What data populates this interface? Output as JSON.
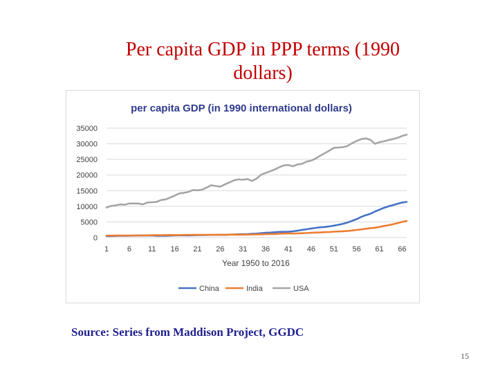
{
  "slide": {
    "title": "Per capita GDP in PPP terms (1990 dollars)",
    "source": "Source: Series from Maddison Project, GGDC",
    "page_number": "15"
  },
  "chart_data": {
    "type": "line",
    "title": "per capita GDP (in 1990 international dollars)",
    "xlabel": "Year 1950 to 2016",
    "ylabel": "",
    "x": [
      1,
      2,
      3,
      4,
      5,
      6,
      7,
      8,
      9,
      10,
      11,
      12,
      13,
      14,
      15,
      16,
      17,
      18,
      19,
      20,
      21,
      22,
      23,
      24,
      25,
      26,
      27,
      28,
      29,
      30,
      31,
      32,
      33,
      34,
      35,
      36,
      37,
      38,
      39,
      40,
      41,
      42,
      43,
      44,
      45,
      46,
      47,
      48,
      49,
      50,
      51,
      52,
      53,
      54,
      55,
      56,
      57,
      58,
      59,
      60,
      61,
      62,
      63,
      64,
      65,
      66,
      67
    ],
    "x_ticks": [
      1,
      6,
      11,
      16,
      21,
      26,
      31,
      36,
      41,
      46,
      51,
      56,
      61,
      66
    ],
    "ylim": [
      0,
      35000
    ],
    "y_ticks": [
      0,
      5000,
      10000,
      15000,
      20000,
      25000,
      30000,
      35000
    ],
    "grid": true,
    "legend_position": "bottom",
    "series": [
      {
        "name": "China",
        "color": "#4472c4",
        "values": [
          450,
          480,
          540,
          560,
          580,
          600,
          630,
          640,
          680,
          650,
          660,
          570,
          560,
          580,
          610,
          670,
          720,
          700,
          680,
          720,
          780,
          800,
          820,
          840,
          850,
          880,
          860,
          920,
          980,
          1040,
          1060,
          1100,
          1190,
          1260,
          1400,
          1520,
          1600,
          1700,
          1820,
          1840,
          1870,
          2000,
          2200,
          2450,
          2660,
          2900,
          3100,
          3280,
          3380,
          3560,
          3800,
          4100,
          4400,
          4800,
          5350,
          5900,
          6600,
          7150,
          7600,
          8300,
          8900,
          9500,
          10000,
          10400,
          10800,
          11200,
          11400
        ]
      },
      {
        "name": "India",
        "color": "#ed7d31",
        "values": [
          620,
          630,
          640,
          650,
          660,
          670,
          670,
          690,
          680,
          710,
          750,
          760,
          760,
          790,
          830,
          800,
          800,
          840,
          850,
          870,
          870,
          870,
          860,
          860,
          870,
          900,
          880,
          940,
          960,
          900,
          940,
          960,
          980,
          1020,
          1050,
          1080,
          1120,
          1140,
          1220,
          1280,
          1320,
          1290,
          1320,
          1390,
          1440,
          1520,
          1600,
          1650,
          1720,
          1780,
          1890,
          1960,
          2020,
          2120,
          2270,
          2440,
          2620,
          2810,
          3010,
          3140,
          3400,
          3700,
          3960,
          4260,
          4640,
          5000,
          5300
        ]
      },
      {
        "name": "USA",
        "color": "#a5a5a5",
        "values": [
          9600,
          10100,
          10300,
          10600,
          10500,
          10900,
          10900,
          10900,
          10600,
          11200,
          11300,
          11400,
          12000,
          12200,
          12800,
          13400,
          14100,
          14300,
          14600,
          15200,
          15100,
          15300,
          16000,
          16700,
          16500,
          16300,
          17000,
          17600,
          18300,
          18600,
          18500,
          18700,
          18100,
          18900,
          20100,
          20700,
          21200,
          21800,
          22500,
          23100,
          23200,
          22800,
          23400,
          23600,
          24300,
          24600,
          25300,
          26200,
          27000,
          27800,
          28700,
          28800,
          28900,
          29300,
          30200,
          30900,
          31500,
          31700,
          31300,
          30000,
          30500,
          30800,
          31200,
          31500,
          31900,
          32500,
          32900
        ]
      }
    ]
  }
}
